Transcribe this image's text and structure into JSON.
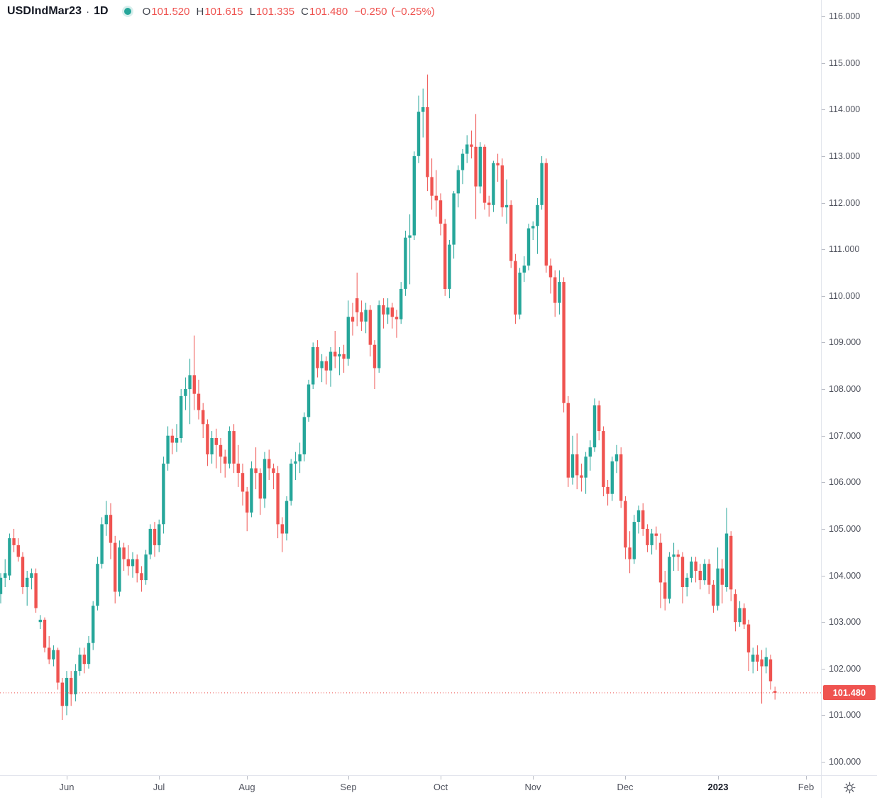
{
  "header": {
    "symbol": "USDIndMar23",
    "separator": "·",
    "interval": "1D",
    "ohlc": {
      "o_label": "O",
      "open": "101.520",
      "h_label": "H",
      "high": "101.615",
      "l_label": "L",
      "low": "101.335",
      "c_label": "C",
      "close": "101.480"
    },
    "change": "−0.250",
    "change_percent": "(−0.25%)"
  },
  "icons": {
    "header_dot": "market-status-dot",
    "corner": "settings-gear"
  },
  "colors": {
    "up": "#26a69a",
    "down": "#ef5350",
    "last_price_line": "#ef5350",
    "badge_bg": "#ef5350",
    "axis_text": "#50535e",
    "border": "#e0e3eb"
  },
  "price_scale": {
    "labels": [
      "116.000",
      "115.000",
      "114.000",
      "113.000",
      "112.000",
      "111.000",
      "110.000",
      "109.000",
      "108.000",
      "107.000",
      "106.000",
      "105.000",
      "104.000",
      "103.000",
      "102.000",
      "101.000",
      "100.000"
    ],
    "last_price_label": "101.480"
  },
  "time_scale": {
    "labels": [
      {
        "label": "Jun",
        "index": 15
      },
      {
        "label": "Jul",
        "index": 36
      },
      {
        "label": "Aug",
        "index": 56
      },
      {
        "label": "Sep",
        "index": 79
      },
      {
        "label": "Oct",
        "index": 100
      },
      {
        "label": "Nov",
        "index": 121
      },
      {
        "label": "Dec",
        "index": 142
      },
      {
        "label": "2023",
        "index": 163,
        "strong": true
      },
      {
        "label": "Feb",
        "index": 183
      }
    ]
  },
  "chart_data": {
    "type": "candlestick",
    "title": "USDIndMar23 1D",
    "symbol": "USDIndMar23",
    "interval": "1D",
    "xlabel": "date",
    "ylabel": "price",
    "y_axis": {
      "min": 100,
      "max": 116,
      "tick_step": 1
    },
    "grid": false,
    "last_price": 101.48,
    "colors": {
      "up": "#26a69a",
      "down": "#ef5350"
    },
    "candles": [
      [
        "2022-05-10",
        103.6,
        104.05,
        103.4,
        103.95
      ],
      [
        "2022-05-11",
        103.95,
        104.35,
        103.75,
        104.05
      ],
      [
        "2022-05-12",
        104.0,
        104.9,
        103.9,
        104.8
      ],
      [
        "2022-05-13",
        104.8,
        105.0,
        104.5,
        104.65
      ],
      [
        "2022-05-16",
        104.65,
        104.8,
        104.3,
        104.4
      ],
      [
        "2022-05-17",
        104.4,
        104.5,
        103.6,
        103.75
      ],
      [
        "2022-05-18",
        103.75,
        104.1,
        103.35,
        103.95
      ],
      [
        "2022-05-19",
        103.95,
        104.15,
        103.7,
        104.05
      ],
      [
        "2022-05-20",
        104.05,
        104.15,
        103.2,
        103.3
      ],
      [
        "2022-05-23",
        103.0,
        103.15,
        102.85,
        103.05
      ],
      [
        "2022-05-24",
        103.05,
        103.1,
        102.35,
        102.45
      ],
      [
        "2022-05-25",
        102.45,
        102.7,
        102.1,
        102.2
      ],
      [
        "2022-05-26",
        102.2,
        102.5,
        102.05,
        102.4
      ],
      [
        "2022-05-27",
        102.4,
        102.45,
        101.55,
        101.7
      ],
      [
        "2022-05-31",
        101.7,
        101.8,
        100.9,
        101.2
      ],
      [
        "2022-06-01",
        101.2,
        101.95,
        101.0,
        101.8
      ],
      [
        "2022-06-02",
        101.8,
        101.95,
        101.2,
        101.45
      ],
      [
        "2022-06-03",
        101.45,
        102.1,
        101.3,
        101.95
      ],
      [
        "2022-06-06",
        101.95,
        102.45,
        101.85,
        102.3
      ],
      [
        "2022-06-07",
        102.3,
        102.45,
        101.9,
        102.1
      ],
      [
        "2022-06-08",
        102.1,
        102.7,
        102.0,
        102.55
      ],
      [
        "2022-06-09",
        102.55,
        103.45,
        102.4,
        103.35
      ],
      [
        "2022-06-10",
        103.35,
        104.4,
        103.25,
        104.25
      ],
      [
        "2022-06-13",
        104.25,
        105.25,
        104.15,
        105.1
      ],
      [
        "2022-06-14",
        105.1,
        105.6,
        104.85,
        105.3
      ],
      [
        "2022-06-15",
        105.3,
        105.55,
        104.35,
        104.7
      ],
      [
        "2022-06-16",
        104.7,
        104.85,
        103.4,
        103.65
      ],
      [
        "2022-06-17",
        103.65,
        104.75,
        103.55,
        104.6
      ],
      [
        "2022-06-21",
        104.6,
        104.7,
        104.1,
        104.35
      ],
      [
        "2022-06-22",
        104.35,
        104.65,
        104.0,
        104.2
      ],
      [
        "2022-06-23",
        104.2,
        104.5,
        103.95,
        104.35
      ],
      [
        "2022-06-24",
        104.35,
        104.45,
        103.85,
        104.05
      ],
      [
        "2022-06-27",
        104.05,
        104.2,
        103.65,
        103.9
      ],
      [
        "2022-06-28",
        103.9,
        104.55,
        103.8,
        104.45
      ],
      [
        "2022-06-29",
        104.45,
        105.1,
        104.35,
        105.0
      ],
      [
        "2022-06-30",
        105.0,
        105.15,
        104.4,
        104.65
      ],
      [
        "2022-07-01",
        104.65,
        105.2,
        104.5,
        105.1
      ],
      [
        "2022-07-05",
        105.1,
        106.55,
        104.9,
        106.4
      ],
      [
        "2022-07-06",
        106.4,
        107.2,
        106.25,
        107.0
      ],
      [
        "2022-07-07",
        107.0,
        107.15,
        106.6,
        106.85
      ],
      [
        "2022-07-08",
        106.85,
        107.25,
        106.65,
        106.95
      ],
      [
        "2022-07-11",
        106.95,
        108.0,
        106.85,
        107.85
      ],
      [
        "2022-07-12",
        107.85,
        108.25,
        107.55,
        108.0
      ],
      [
        "2022-07-13",
        108.0,
        108.65,
        107.25,
        108.3
      ],
      [
        "2022-07-14",
        108.3,
        109.15,
        107.55,
        107.9
      ],
      [
        "2022-07-15",
        107.9,
        108.2,
        107.35,
        107.55
      ],
      [
        "2022-07-18",
        107.55,
        107.7,
        106.95,
        107.25
      ],
      [
        "2022-07-19",
        107.25,
        107.35,
        106.35,
        106.6
      ],
      [
        "2022-07-20",
        106.6,
        107.1,
        106.4,
        106.95
      ],
      [
        "2022-07-21",
        106.95,
        107.15,
        106.3,
        106.8
      ],
      [
        "2022-07-22",
        106.8,
        106.95,
        106.2,
        106.55
      ],
      [
        "2022-07-25",
        106.55,
        106.7,
        106.1,
        106.4
      ],
      [
        "2022-07-26",
        106.4,
        107.2,
        106.3,
        107.1
      ],
      [
        "2022-07-27",
        107.1,
        107.25,
        106.2,
        106.4
      ],
      [
        "2022-07-28",
        106.4,
        106.8,
        105.9,
        106.2
      ],
      [
        "2022-07-29",
        106.2,
        106.4,
        105.5,
        105.8
      ],
      [
        "2022-08-01",
        105.8,
        105.9,
        104.95,
        105.35
      ],
      [
        "2022-08-02",
        105.35,
        106.45,
        105.25,
        106.3
      ],
      [
        "2022-08-03",
        106.3,
        106.75,
        105.85,
        106.2
      ],
      [
        "2022-08-04",
        106.2,
        106.3,
        105.3,
        105.65
      ],
      [
        "2022-08-05",
        105.65,
        106.65,
        105.45,
        106.5
      ],
      [
        "2022-08-08",
        106.5,
        106.7,
        106.05,
        106.3
      ],
      [
        "2022-08-09",
        106.3,
        106.4,
        105.85,
        106.2
      ],
      [
        "2022-08-10",
        106.2,
        106.35,
        104.8,
        105.1
      ],
      [
        "2022-08-11",
        105.1,
        105.25,
        104.5,
        104.9
      ],
      [
        "2022-08-12",
        104.9,
        105.7,
        104.75,
        105.6
      ],
      [
        "2022-08-15",
        105.6,
        106.5,
        105.5,
        106.4
      ],
      [
        "2022-08-16",
        106.4,
        106.65,
        106.05,
        106.45
      ],
      [
        "2022-08-17",
        106.45,
        106.85,
        106.2,
        106.6
      ],
      [
        "2022-08-18",
        106.6,
        107.5,
        106.45,
        107.4
      ],
      [
        "2022-08-19",
        107.4,
        108.2,
        107.3,
        108.1
      ],
      [
        "2022-08-22",
        108.1,
        109.0,
        108.0,
        108.9
      ],
      [
        "2022-08-23",
        108.9,
        109.05,
        108.25,
        108.45
      ],
      [
        "2022-08-24",
        108.45,
        108.75,
        108.15,
        108.6
      ],
      [
        "2022-08-25",
        108.6,
        108.7,
        108.1,
        108.4
      ],
      [
        "2022-08-26",
        108.4,
        108.9,
        108.05,
        108.8
      ],
      [
        "2022-08-29",
        108.8,
        109.25,
        108.45,
        108.7
      ],
      [
        "2022-08-30",
        108.7,
        108.9,
        108.3,
        108.75
      ],
      [
        "2022-08-31",
        108.75,
        108.95,
        108.35,
        108.65
      ],
      [
        "2022-09-01",
        108.65,
        109.9,
        108.5,
        109.55
      ],
      [
        "2022-09-02",
        109.55,
        109.85,
        109.15,
        109.45
      ],
      [
        "2022-09-06",
        109.95,
        110.5,
        109.35,
        109.65
      ],
      [
        "2022-09-07",
        109.65,
        109.9,
        109.25,
        109.45
      ],
      [
        "2022-09-08",
        109.45,
        109.85,
        109.2,
        109.7
      ],
      [
        "2022-09-09",
        109.7,
        109.8,
        108.7,
        108.95
      ],
      [
        "2022-09-12",
        108.95,
        109.05,
        108.0,
        108.45
      ],
      [
        "2022-09-13",
        108.45,
        109.9,
        108.35,
        109.8
      ],
      [
        "2022-09-14",
        109.8,
        109.95,
        109.3,
        109.6
      ],
      [
        "2022-09-15",
        109.6,
        109.95,
        109.4,
        109.75
      ],
      [
        "2022-09-16",
        109.75,
        109.85,
        109.3,
        109.55
      ],
      [
        "2022-09-19",
        109.55,
        109.7,
        109.1,
        109.5
      ],
      [
        "2022-09-20",
        109.5,
        110.3,
        109.4,
        110.15
      ],
      [
        "2022-09-21",
        110.15,
        111.4,
        110.0,
        111.25
      ],
      [
        "2022-09-22",
        111.25,
        111.75,
        110.25,
        111.3
      ],
      [
        "2022-09-23",
        111.3,
        113.1,
        111.2,
        113.0
      ],
      [
        "2022-09-26",
        113.0,
        114.3,
        112.85,
        113.95
      ],
      [
        "2022-09-27",
        113.95,
        114.45,
        113.4,
        114.05
      ],
      [
        "2022-09-28",
        114.05,
        114.75,
        112.25,
        112.55
      ],
      [
        "2022-09-29",
        112.55,
        112.95,
        111.85,
        112.15
      ],
      [
        "2022-09-30",
        112.15,
        112.7,
        111.7,
        112.05
      ],
      [
        "2022-10-03",
        112.05,
        112.2,
        111.3,
        111.55
      ],
      [
        "2022-10-04",
        111.55,
        111.65,
        110.0,
        110.15
      ],
      [
        "2022-10-05",
        110.15,
        111.2,
        109.95,
        111.1
      ],
      [
        "2022-10-06",
        111.1,
        112.25,
        110.8,
        112.2
      ],
      [
        "2022-10-07",
        112.2,
        112.8,
        111.9,
        112.7
      ],
      [
        "2022-10-10",
        112.7,
        113.15,
        112.4,
        113.05
      ],
      [
        "2022-10-11",
        113.05,
        113.45,
        112.85,
        113.25
      ],
      [
        "2022-10-12",
        113.25,
        113.55,
        112.95,
        113.2
      ],
      [
        "2022-10-13",
        113.2,
        113.9,
        111.65,
        112.35
      ],
      [
        "2022-10-14",
        112.35,
        113.3,
        112.2,
        113.2
      ],
      [
        "2022-10-17",
        113.2,
        113.25,
        111.85,
        112.0
      ],
      [
        "2022-10-18",
        112.0,
        112.15,
        111.7,
        111.95
      ],
      [
        "2022-10-19",
        111.95,
        112.9,
        111.8,
        112.85
      ],
      [
        "2022-10-20",
        112.85,
        113.05,
        112.45,
        112.8
      ],
      [
        "2022-10-21",
        112.8,
        112.95,
        111.7,
        111.9
      ],
      [
        "2022-10-24",
        111.9,
        112.5,
        111.55,
        111.95
      ],
      [
        "2022-10-25",
        111.95,
        112.05,
        110.6,
        110.75
      ],
      [
        "2022-10-26",
        110.75,
        110.9,
        109.4,
        109.6
      ],
      [
        "2022-10-27",
        109.6,
        110.6,
        109.5,
        110.5
      ],
      [
        "2022-10-28",
        110.5,
        110.85,
        110.3,
        110.65
      ],
      [
        "2022-10-31",
        110.65,
        111.55,
        110.55,
        111.45
      ],
      [
        "2022-11-01",
        111.45,
        111.6,
        111.2,
        111.5
      ],
      [
        "2022-11-02",
        111.5,
        112.1,
        110.9,
        111.95
      ],
      [
        "2022-11-03",
        111.95,
        113.0,
        111.85,
        112.85
      ],
      [
        "2022-11-04",
        112.85,
        112.95,
        110.5,
        110.65
      ],
      [
        "2022-11-07",
        110.65,
        110.8,
        110.05,
        110.4
      ],
      [
        "2022-11-08",
        110.4,
        110.55,
        109.55,
        109.85
      ],
      [
        "2022-11-09",
        109.85,
        110.55,
        109.6,
        110.3
      ],
      [
        "2022-11-10",
        110.3,
        110.4,
        107.5,
        107.7
      ],
      [
        "2022-11-11",
        107.7,
        107.85,
        105.9,
        106.1
      ],
      [
        "2022-11-14",
        106.1,
        107.0,
        105.95,
        106.6
      ],
      [
        "2022-11-15",
        106.6,
        107.05,
        105.85,
        106.15
      ],
      [
        "2022-11-16",
        106.15,
        106.4,
        105.8,
        106.1
      ],
      [
        "2022-11-17",
        106.1,
        106.65,
        105.75,
        106.55
      ],
      [
        "2022-11-18",
        106.55,
        106.9,
        106.25,
        106.75
      ],
      [
        "2022-11-21",
        106.75,
        107.8,
        106.65,
        107.65
      ],
      [
        "2022-11-22",
        107.65,
        107.75,
        106.9,
        107.1
      ],
      [
        "2022-11-23",
        107.1,
        107.2,
        105.7,
        105.9
      ],
      [
        "2022-11-25",
        105.9,
        106.05,
        105.5,
        105.75
      ],
      [
        "2022-11-28",
        105.75,
        106.55,
        105.6,
        106.45
      ],
      [
        "2022-11-29",
        106.45,
        106.8,
        106.2,
        106.6
      ],
      [
        "2022-11-30",
        106.6,
        106.75,
        105.45,
        105.6
      ],
      [
        "2022-12-01",
        105.6,
        105.7,
        104.35,
        104.6
      ],
      [
        "2022-12-02",
        104.6,
        104.95,
        104.05,
        104.35
      ],
      [
        "2022-12-05",
        104.35,
        105.3,
        104.25,
        105.15
      ],
      [
        "2022-12-06",
        105.15,
        105.5,
        104.9,
        105.4
      ],
      [
        "2022-12-07",
        105.4,
        105.55,
        104.85,
        105.0
      ],
      [
        "2022-12-08",
        105.0,
        105.1,
        104.5,
        104.65
      ],
      [
        "2022-12-09",
        104.65,
        105.0,
        104.45,
        104.9
      ],
      [
        "2022-12-12",
        104.9,
        105.05,
        104.55,
        104.85
      ],
      [
        "2022-12-13",
        104.7,
        104.9,
        103.3,
        103.85
      ],
      [
        "2022-12-14",
        103.85,
        104.1,
        103.25,
        103.5
      ],
      [
        "2022-12-15",
        103.5,
        104.5,
        103.4,
        104.4
      ],
      [
        "2022-12-16",
        104.4,
        104.7,
        104.1,
        104.45
      ],
      [
        "2022-12-19",
        104.45,
        104.55,
        104.1,
        104.4
      ],
      [
        "2022-12-20",
        104.4,
        104.5,
        103.4,
        103.75
      ],
      [
        "2022-12-21",
        103.75,
        104.05,
        103.55,
        103.95
      ],
      [
        "2022-12-22",
        103.95,
        104.4,
        103.85,
        104.3
      ],
      [
        "2022-12-23",
        104.3,
        104.4,
        103.85,
        104.1
      ],
      [
        "2022-12-27",
        104.1,
        104.25,
        103.7,
        103.9
      ],
      [
        "2022-12-28",
        103.9,
        104.35,
        103.8,
        104.25
      ],
      [
        "2022-12-29",
        104.25,
        104.35,
        103.6,
        103.8
      ],
      [
        "2022-12-30",
        103.8,
        103.9,
        103.2,
        103.35
      ],
      [
        "2023-01-03",
        103.35,
        104.6,
        103.25,
        104.15
      ],
      [
        "2023-01-04",
        104.15,
        104.35,
        103.4,
        103.8
      ],
      [
        "2023-01-05",
        103.75,
        105.45,
        103.65,
        104.9
      ],
      [
        "2023-01-06",
        104.85,
        104.95,
        103.45,
        103.7
      ],
      [
        "2023-01-09",
        103.6,
        103.7,
        102.8,
        103.0
      ],
      [
        "2023-01-10",
        103.0,
        103.45,
        102.9,
        103.3
      ],
      [
        "2023-01-11",
        103.3,
        103.4,
        102.85,
        102.95
      ],
      [
        "2023-01-12",
        102.95,
        103.05,
        101.95,
        102.35
      ],
      [
        "2023-01-13",
        102.15,
        102.45,
        101.9,
        102.3
      ],
      [
        "2023-01-17",
        102.3,
        102.5,
        101.95,
        102.15
      ],
      [
        "2023-01-18",
        102.2,
        102.4,
        101.25,
        102.05
      ],
      [
        "2023-01-19",
        102.05,
        102.45,
        101.9,
        102.25
      ],
      [
        "2023-01-20",
        102.2,
        102.3,
        101.55,
        101.73
      ],
      [
        "2023-01-23",
        101.52,
        101.615,
        101.335,
        101.48
      ]
    ]
  }
}
